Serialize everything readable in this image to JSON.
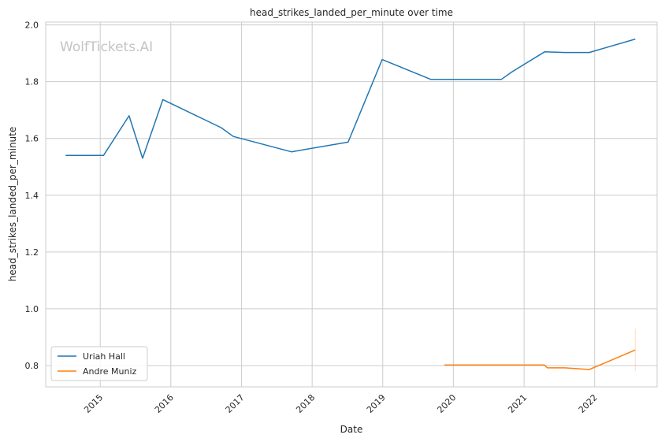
{
  "chart_data": {
    "type": "line",
    "title": "head_strikes_landed_per_minute over time",
    "xlabel": "Date",
    "ylabel": "head_strikes_landed_per_minute",
    "watermark": "WolfTickets.AI",
    "grid": true,
    "legend_position": "bottom-left",
    "xlim": [
      "2014-03-25",
      "2022-11-20"
    ],
    "ylim": [
      0.725,
      2.01
    ],
    "x_ticks": [
      {
        "label": "2015",
        "date": "2015-01-01"
      },
      {
        "label": "2016",
        "date": "2016-01-01"
      },
      {
        "label": "2017",
        "date": "2017-01-01"
      },
      {
        "label": "2018",
        "date": "2018-01-01"
      },
      {
        "label": "2019",
        "date": "2019-01-01"
      },
      {
        "label": "2020",
        "date": "2020-01-01"
      },
      {
        "label": "2021",
        "date": "2021-01-01"
      },
      {
        "label": "2022",
        "date": "2022-01-01"
      }
    ],
    "y_ticks": [
      "0.8",
      "1.0",
      "1.2",
      "1.4",
      "1.6",
      "1.8",
      "2.0"
    ],
    "series": [
      {
        "name": "Uriah Hall",
        "color": "#1f77b4",
        "points": [
          {
            "x": "2014-07-06",
            "y": 1.54
          },
          {
            "x": "2015-01-18",
            "y": 1.54
          },
          {
            "x": "2015-05-30",
            "y": 1.68
          },
          {
            "x": "2015-08-08",
            "y": 1.53
          },
          {
            "x": "2015-11-21",
            "y": 1.737
          },
          {
            "x": "2016-09-17",
            "y": 1.638
          },
          {
            "x": "2016-11-19",
            "y": 1.607
          },
          {
            "x": "2017-09-16",
            "y": 1.553
          },
          {
            "x": "2018-07-06",
            "y": 1.587
          },
          {
            "x": "2018-12-29",
            "y": 1.878
          },
          {
            "x": "2019-09-07",
            "y": 1.808
          },
          {
            "x": "2020-09-05",
            "y": 1.808
          },
          {
            "x": "2020-10-31",
            "y": 1.835
          },
          {
            "x": "2021-04-17",
            "y": 1.905
          },
          {
            "x": "2021-07-31",
            "y": 1.903
          },
          {
            "x": "2021-12-04",
            "y": 1.903
          },
          {
            "x": "2022-07-30",
            "y": 1.95
          }
        ]
      },
      {
        "name": "Andre Muniz",
        "color": "#ff7f0e",
        "points": [
          {
            "x": "2019-11-16",
            "y": 0.802
          },
          {
            "x": "2021-04-17",
            "y": 0.802
          },
          {
            "x": "2021-05-01",
            "y": 0.792
          },
          {
            "x": "2021-07-31",
            "y": 0.792
          },
          {
            "x": "2021-12-04",
            "y": 0.786
          },
          {
            "x": "2022-07-30",
            "y": 0.855
          }
        ],
        "band": [
          {
            "x": "2022-07-30",
            "low": 0.78,
            "high": 0.93
          }
        ]
      }
    ]
  }
}
